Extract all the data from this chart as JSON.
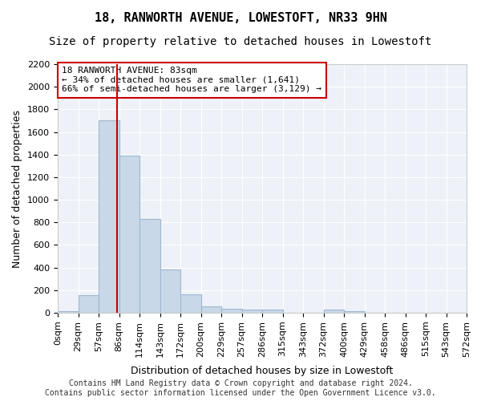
{
  "title": "18, RANWORTH AVENUE, LOWESTOFT, NR33 9HN",
  "subtitle": "Size of property relative to detached houses in Lowestoft",
  "xlabel": "Distribution of detached houses by size in Lowestoft",
  "ylabel": "Number of detached properties",
  "bin_labels": [
    "0sqm",
    "29sqm",
    "57sqm",
    "86sqm",
    "114sqm",
    "143sqm",
    "172sqm",
    "200sqm",
    "229sqm",
    "257sqm",
    "286sqm",
    "315sqm",
    "343sqm",
    "372sqm",
    "400sqm",
    "429sqm",
    "458sqm",
    "486sqm",
    "515sqm",
    "543sqm",
    "572sqm"
  ],
  "bar_values": [
    15,
    155,
    1700,
    1390,
    830,
    385,
    160,
    60,
    35,
    25,
    25,
    0,
    0,
    25,
    15,
    0,
    0,
    0,
    0,
    0
  ],
  "bar_color": "#c8d8e8",
  "bar_edge_color": "#a0b8d0",
  "red_line_color": "#cc0000",
  "annotation_text": "18 RANWORTH AVENUE: 83sqm\n← 34% of detached houses are smaller (1,641)\n66% of semi-detached houses are larger (3,129) →",
  "annotation_box_color": "#ffffff",
  "annotation_box_edge": "#cc0000",
  "ylim": [
    0,
    2200
  ],
  "yticks": [
    0,
    200,
    400,
    600,
    800,
    1000,
    1200,
    1400,
    1600,
    1800,
    2000,
    2200
  ],
  "background_color": "#eef2f8",
  "grid_color": "#ffffff",
  "footer_text": "Contains HM Land Registry data © Crown copyright and database right 2024.\nContains public sector information licensed under the Open Government Licence v3.0.",
  "title_fontsize": 11,
  "subtitle_fontsize": 10,
  "axis_label_fontsize": 9,
  "tick_fontsize": 8,
  "annotation_fontsize": 8,
  "footer_fontsize": 7
}
